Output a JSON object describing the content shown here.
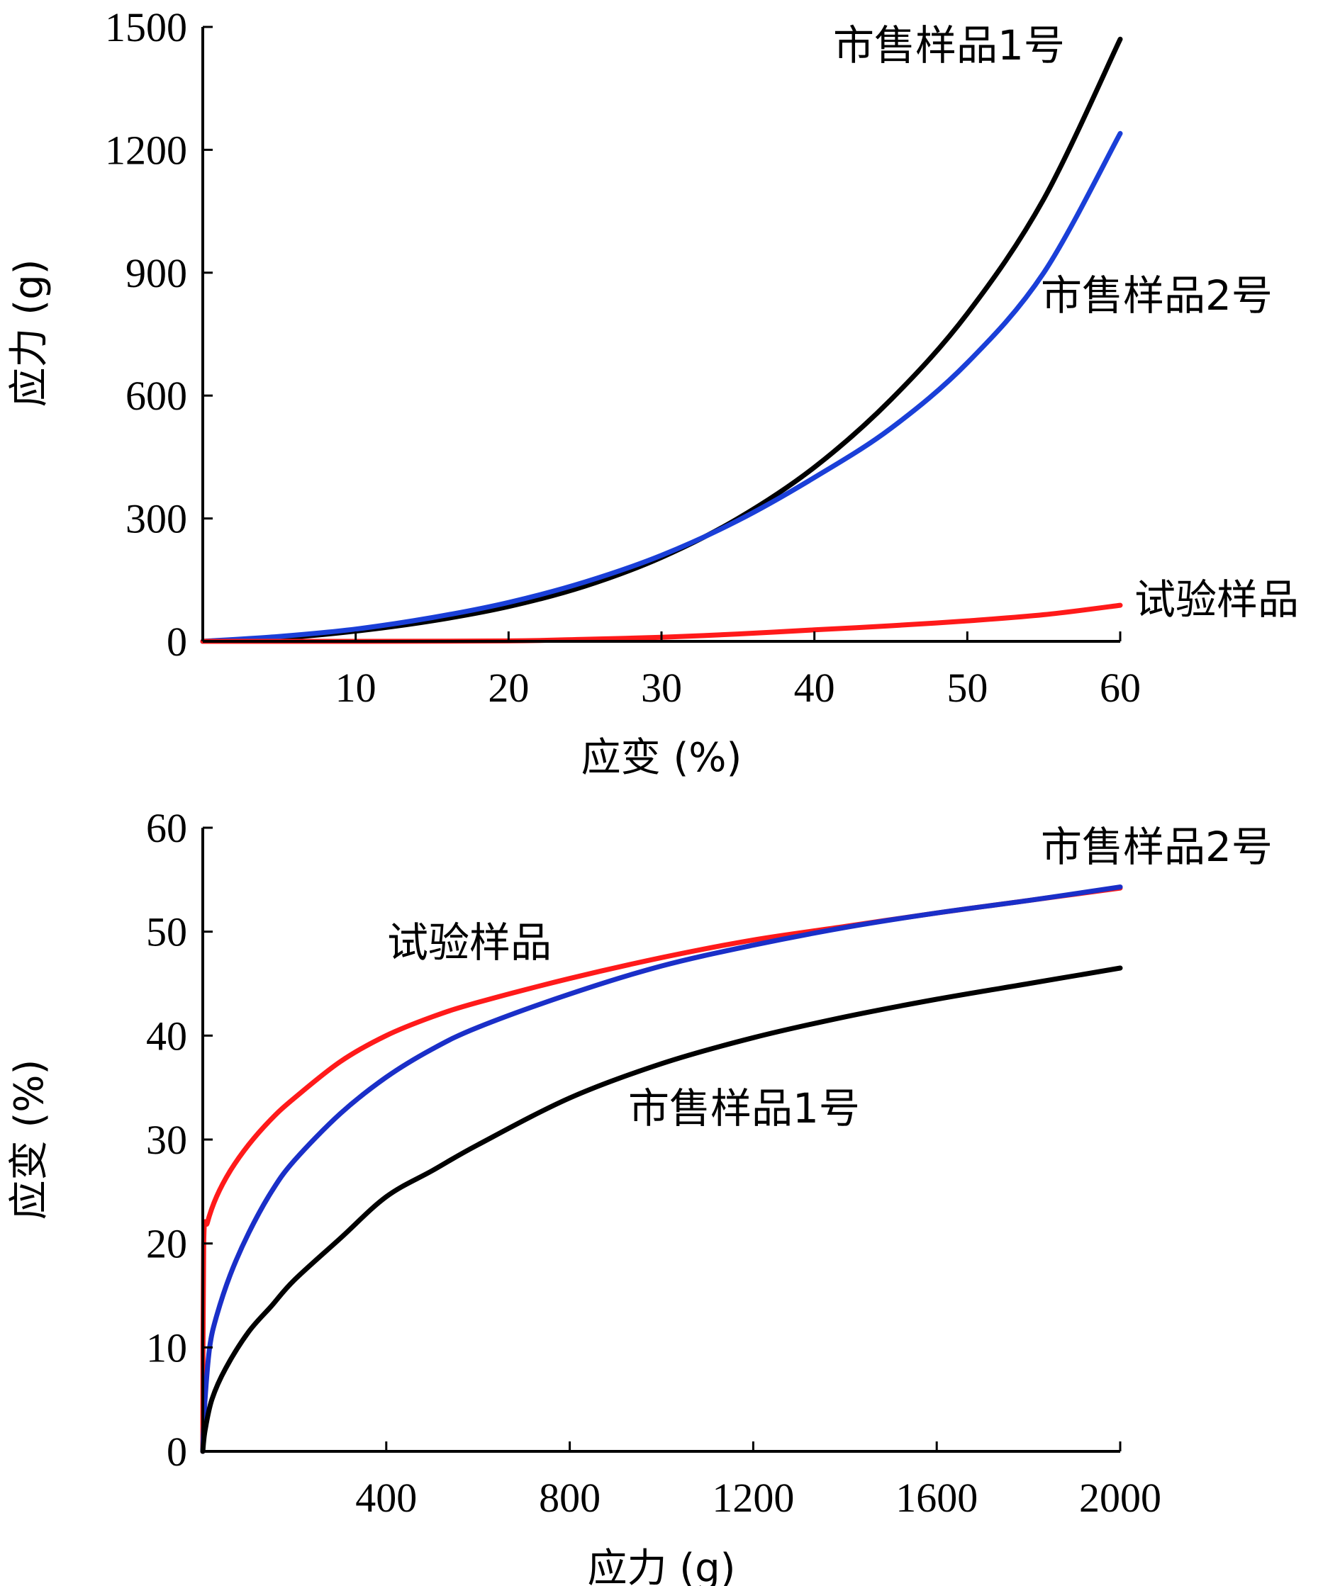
{
  "chart_data": [
    {
      "type": "line",
      "title": "",
      "xlabel": "应变 (%)",
      "ylabel": "应力 (g)",
      "xlim": [
        0,
        60
      ],
      "ylim": [
        0,
        1500
      ],
      "xticks": [
        10,
        20,
        30,
        40,
        50,
        60
      ],
      "yticks": [
        0,
        300,
        600,
        900,
        1200,
        1500
      ],
      "grid": false,
      "series": [
        {
          "name": "市售样品1号",
          "color": "#000000",
          "x": [
            0,
            5,
            10,
            15,
            20,
            25,
            30,
            35,
            40,
            45,
            50,
            55,
            60
          ],
          "y": [
            0,
            8,
            25,
            50,
            85,
            135,
            205,
            300,
            425,
            590,
            800,
            1080,
            1470
          ]
        },
        {
          "name": "市售样品2号",
          "color": "#1a3fd8",
          "x": [
            0,
            5,
            10,
            15,
            20,
            25,
            30,
            35,
            40,
            45,
            50,
            55,
            60
          ],
          "y": [
            0,
            12,
            30,
            58,
            95,
            145,
            210,
            295,
            400,
            520,
            680,
            900,
            1240
          ]
        },
        {
          "name": "试验样品",
          "color": "#ff1a1a",
          "x": [
            0,
            10,
            20,
            25,
            30,
            35,
            40,
            45,
            50,
            55,
            60
          ],
          "y": [
            0,
            0,
            1,
            5,
            10,
            18,
            28,
            38,
            50,
            65,
            88
          ]
        }
      ]
    },
    {
      "type": "line",
      "title": "",
      "xlabel": "应力 (g)",
      "ylabel": "应变 (%)",
      "xlim": [
        0,
        2000
      ],
      "ylim": [
        0,
        60
      ],
      "xticks": [
        400,
        800,
        1200,
        1600,
        2000
      ],
      "yticks": [
        0,
        10,
        20,
        30,
        40,
        50,
        60
      ],
      "grid": false,
      "series": [
        {
          "name": "试验样品",
          "color": "#ff1a1a",
          "x": [
            0,
            2,
            10,
            30,
            60,
            100,
            150,
            200,
            300,
            400,
            500,
            600,
            800,
            1000,
            1200,
            1400,
            1600,
            1800,
            2000
          ],
          "y": [
            0,
            20,
            22,
            24.5,
            27,
            29.5,
            32,
            34,
            37.5,
            40,
            41.8,
            43.2,
            45.5,
            47.5,
            49.2,
            50.5,
            51.8,
            53,
            54.2
          ]
        },
        {
          "name": "市售样品2号",
          "color": "#1a2fc8",
          "x": [
            0,
            5,
            15,
            30,
            60,
            100,
            150,
            200,
            300,
            400,
            500,
            600,
            800,
            1000,
            1200,
            1400,
            1600,
            1800,
            2000
          ],
          "y": [
            0,
            5,
            10,
            13,
            17,
            21,
            25,
            28,
            32.5,
            36,
            38.7,
            40.8,
            44,
            46.7,
            48.7,
            50.4,
            51.8,
            53,
            54.3
          ]
        },
        {
          "name": "市售样品1号",
          "color": "#000000",
          "x": [
            0,
            5,
            20,
            50,
            100,
            150,
            200,
            300,
            400,
            500,
            600,
            800,
            1000,
            1200,
            1400,
            1600,
            1800,
            2000
          ],
          "y": [
            0,
            2,
            5,
            8,
            11.5,
            14,
            16.5,
            20.5,
            24.5,
            27,
            29.5,
            34,
            37.3,
            39.8,
            41.8,
            43.5,
            45,
            46.5
          ]
        }
      ]
    }
  ],
  "labels": {
    "top": {
      "s1": "市售样品1号",
      "s2": "市售样品2号",
      "s3": "试验样品"
    },
    "bottom": {
      "s1": "市售样品1号",
      "s2": "市售样品2号",
      "s3": "试验样品"
    }
  }
}
